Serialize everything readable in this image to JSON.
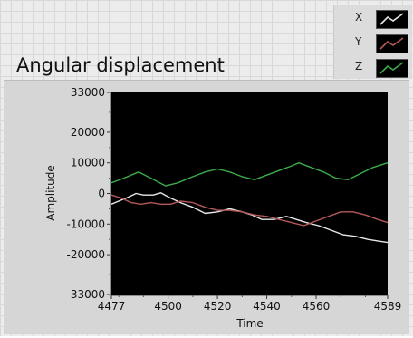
{
  "chart_data": {
    "type": "line",
    "title": "Angular displacement",
    "xlabel": "Time",
    "ylabel": "Amplitude",
    "xlim": [
      4477,
      4589
    ],
    "ylim": [
      -33000,
      33000
    ],
    "x_ticks": [
      4477,
      4500,
      4520,
      4540,
      4560,
      4589
    ],
    "y_ticks": [
      33000,
      20000,
      10000,
      0,
      -10000,
      -20000,
      -33000
    ],
    "background": "#000000",
    "legend_position": "top-right",
    "series": [
      {
        "name": "X",
        "color": "#e8e8e8",
        "x": [
          4477,
          4483,
          4487,
          4490,
          4494,
          4497,
          4501,
          4505,
          4510,
          4515,
          4520,
          4525,
          4530,
          4534,
          4538,
          4543,
          4548,
          4552,
          4556,
          4561,
          4566,
          4571,
          4576,
          4581,
          4585,
          4589
        ],
        "y": [
          -3500,
          -1500,
          0,
          -500,
          -500,
          200,
          -1500,
          -3000,
          -4500,
          -6500,
          -6000,
          -5000,
          -6000,
          -7000,
          -8500,
          -8500,
          -7500,
          -8500,
          -9500,
          -10500,
          -12000,
          -13500,
          -14000,
          -15000,
          -15500,
          -16000
        ]
      },
      {
        "name": "Y",
        "color": "#b45858",
        "x": [
          4477,
          4481,
          4485,
          4489,
          4493,
          4497,
          4501,
          4505,
          4510,
          4515,
          4520,
          4525,
          4530,
          4535,
          4540,
          4545,
          4550,
          4555,
          4560,
          4565,
          4570,
          4575,
          4580,
          4585,
          4589
        ],
        "y": [
          -500,
          -1500,
          -3000,
          -3500,
          -3000,
          -3500,
          -3500,
          -2500,
          -3000,
          -4500,
          -5500,
          -5500,
          -6000,
          -7000,
          -7500,
          -8500,
          -9500,
          -10500,
          -9000,
          -7500,
          -6000,
          -6000,
          -7000,
          -8500,
          -9500
        ]
      },
      {
        "name": "Z",
        "color": "#3cab4b",
        "x": [
          4477,
          4482,
          4488,
          4493,
          4499,
          4504,
          4510,
          4515,
          4520,
          4525,
          4530,
          4535,
          4540,
          4545,
          4550,
          4553,
          4558,
          4563,
          4568,
          4573,
          4578,
          4583,
          4589
        ],
        "y": [
          3500,
          5000,
          7000,
          5000,
          2500,
          3500,
          5500,
          7000,
          8000,
          7000,
          5500,
          4500,
          6000,
          7500,
          9000,
          10000,
          8500,
          7000,
          5000,
          4500,
          6500,
          8500,
          10000
        ]
      }
    ]
  }
}
